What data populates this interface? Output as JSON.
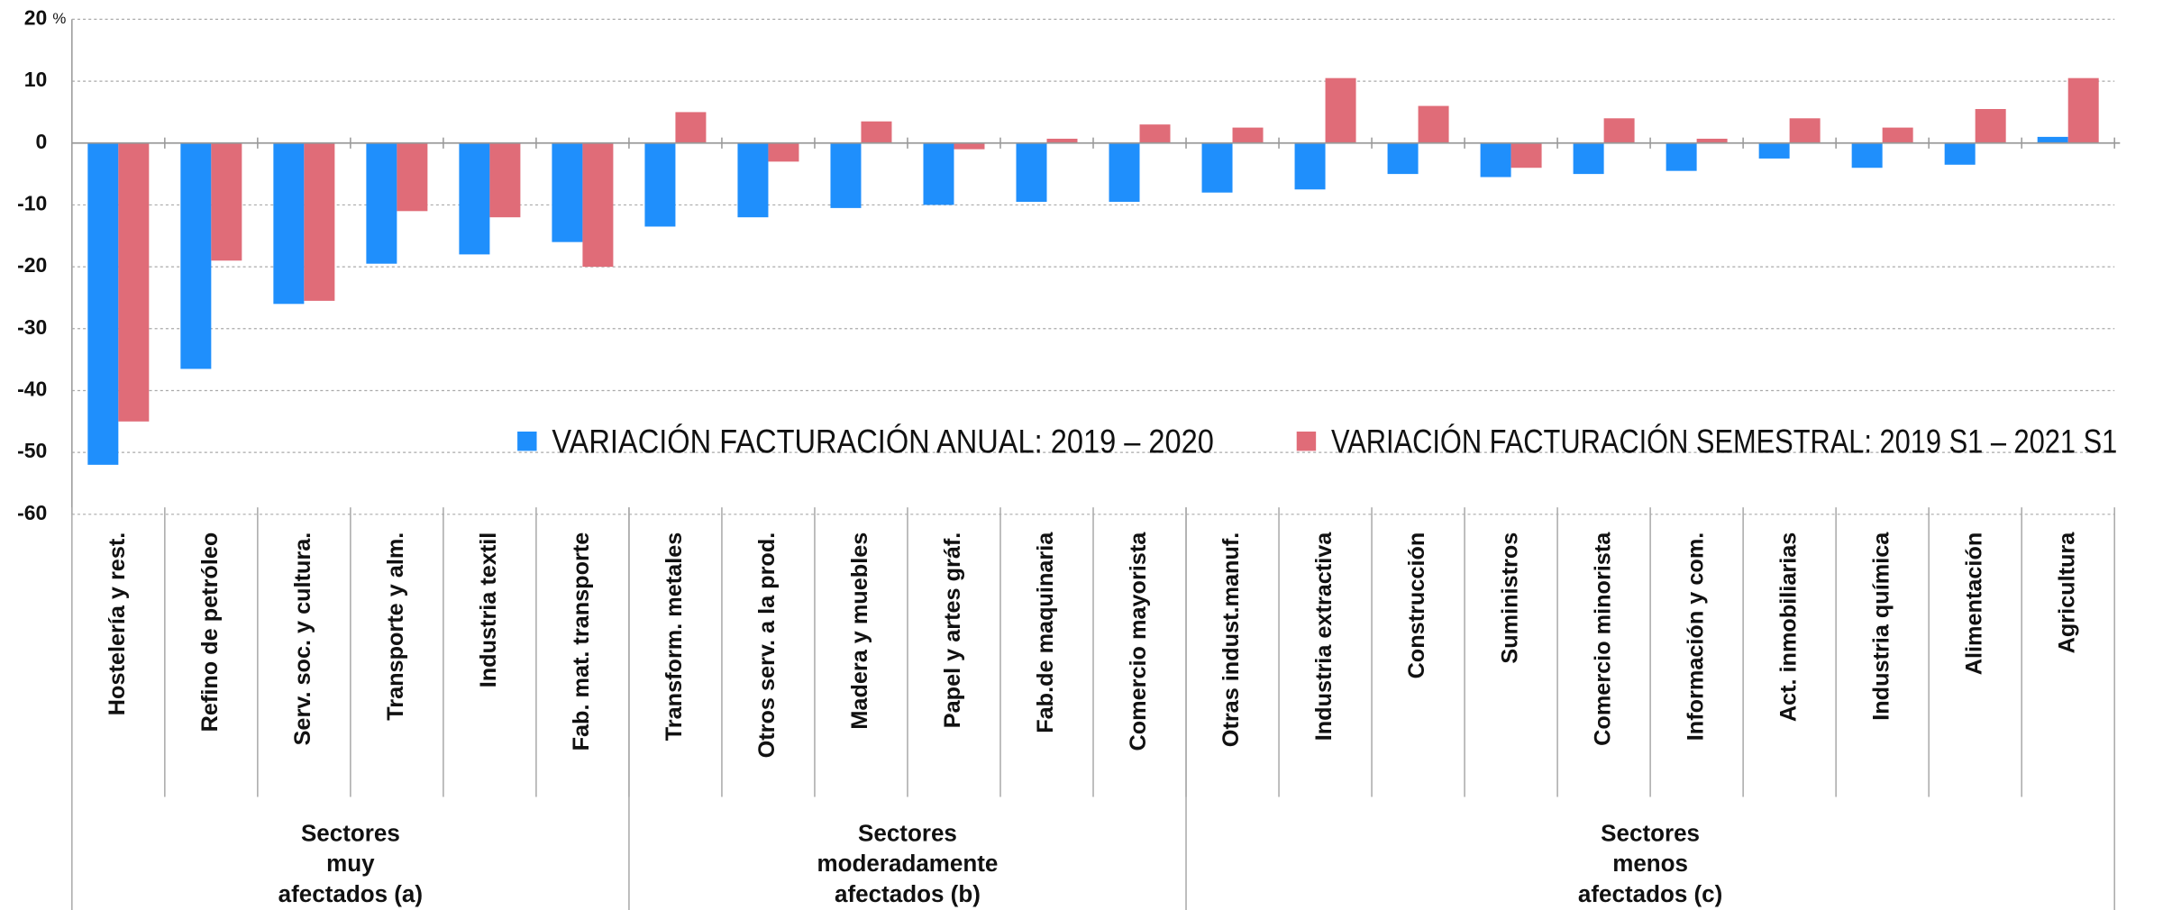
{
  "chart_data": {
    "type": "bar",
    "y_unit": "%",
    "ylim": [
      -60,
      20
    ],
    "yticks": [
      -60,
      -50,
      -40,
      -30,
      -20,
      -10,
      0,
      10,
      20
    ],
    "grid": true,
    "groups": [
      {
        "label": [
          "Sectores",
          "muy",
          "afectados (a)"
        ],
        "categories": [
          "Hostelería y rest.",
          "Refino de petróleo",
          "Serv. soc. y cultura.",
          "Transporte y alm.",
          "Industria textil",
          "Fab. mat. transporte"
        ]
      },
      {
        "label": [
          "Sectores",
          "moderadamente",
          "afectados (b)"
        ],
        "categories": [
          "Transform. metales",
          "Otros serv. a la prod.",
          "Madera y muebles",
          "Papel y artes gráf.",
          "Fab.de maquinaria",
          "Comercio mayorista"
        ]
      },
      {
        "label": [
          "Sectores",
          "menos",
          "afectados (c)"
        ],
        "categories": [
          "Otras indust.manuf.",
          "Industria extractiva",
          "Construcción",
          "Suministros",
          "Comercio minorista",
          "Información y com.",
          "Act. inmobiliarias",
          "Industria química",
          "Alimentación",
          "Agricultura"
        ]
      }
    ],
    "series": [
      {
        "name": "VARIACIÓN FACTURACIÓN ANUAL: 2019 – 2020",
        "color": "#1f8ffc",
        "values": [
          -52,
          -36.5,
          -26,
          -19.5,
          -18,
          -16,
          -13.5,
          -12,
          -10.5,
          -10,
          -9.5,
          -9.5,
          -8,
          -7.5,
          -5,
          -5.5,
          -5,
          -4.5,
          -2.5,
          -4,
          -3.5,
          1
        ]
      },
      {
        "name": "VARIACIÓN FACTURACIÓN SEMESTRAL: 2019 S1 – 2021 S1",
        "color": "#e06c78",
        "values": [
          -45,
          -19,
          -25.5,
          -11,
          -12,
          -20,
          5,
          -3,
          3.5,
          -1,
          0.7,
          3,
          2.5,
          10.5,
          6,
          -4,
          4,
          0.7,
          4,
          2.5,
          5.5,
          10.5
        ]
      }
    ]
  }
}
